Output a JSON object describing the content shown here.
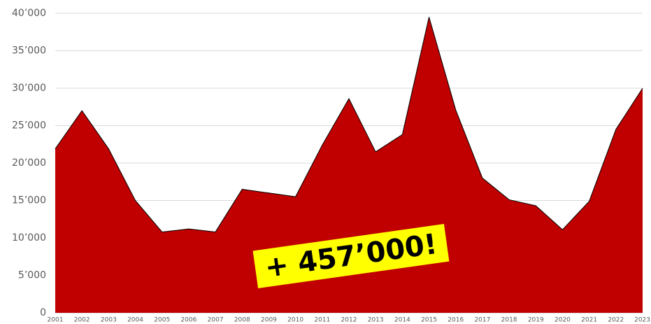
{
  "chart_data": {
    "type": "area",
    "annotation": "+ 457’000!",
    "categories": [
      "2001",
      "2002",
      "2003",
      "2004",
      "2005",
      "2006",
      "2007",
      "2008",
      "2009",
      "2010",
      "2011",
      "2012",
      "2013",
      "2014",
      "2015",
      "2016",
      "2017",
      "2018",
      "2019",
      "2020",
      "2021",
      "2022",
      "2023"
    ],
    "values": [
      21900,
      27000,
      21900,
      15000,
      10800,
      11200,
      10800,
      16500,
      16000,
      15500,
      22400,
      28600,
      21500,
      23800,
      39500,
      27100,
      18000,
      15100,
      14300,
      11100,
      14900,
      24500,
      30000
    ],
    "color": "#c00000",
    "ylim": [
      0,
      40000
    ],
    "yticks": [
      0,
      {
        "value": 5000,
        "label": "5’000"
      },
      {
        "value": 10000,
        "label": "10’000"
      },
      {
        "value": 15000,
        "label": "15’000"
      },
      {
        "value": 20000,
        "label": "20’000"
      },
      {
        "value": 25000,
        "label": "25’000"
      },
      {
        "value": 30000,
        "label": "30’000"
      },
      {
        "value": 35000,
        "label": "35’000"
      },
      {
        "value": 40000,
        "label": "40’000"
      }
    ],
    "grid": true
  }
}
